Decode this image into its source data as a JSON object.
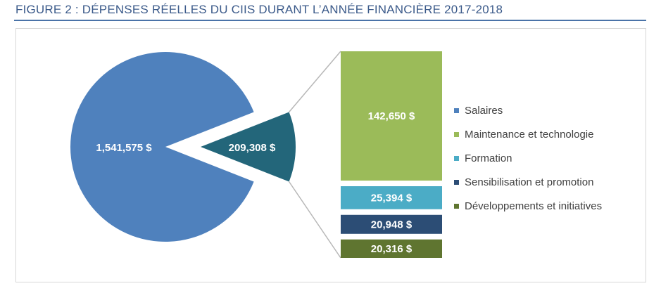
{
  "figure": {
    "title": "FIGURE 2 : DÉPENSES RÉELLES DU CIIS DURANT L’ANNÉE FINANCIÈRE 2017-2018"
  },
  "chart_data": {
    "type": "pie",
    "subtype": "bar-of-pie",
    "title": "FIGURE 2 : DÉPENSES RÉELLES DU CIIS DURANT L’ANNÉE FINANCIÈRE 2017-2018",
    "slices": [
      {
        "label": "1,541,575 $",
        "value": 1541575,
        "color": "#4f81bd"
      },
      {
        "label": "209,308 $",
        "value": 209308,
        "color": "#23667a"
      }
    ],
    "breakdown": [
      {
        "name": "Maintenance et technologie",
        "value": 142650,
        "label": "142,650 $",
        "color": "#9bbb59"
      },
      {
        "name": "Formation",
        "value": 25394,
        "label": "25,394 $",
        "color": "#4bacc6"
      },
      {
        "name": "Sensibilisation et promotion",
        "value": 20948,
        "label": "20,948 $",
        "color": "#2c4d75"
      },
      {
        "name": "Développements et initiatives",
        "value": 20316,
        "label": "20,316 $",
        "color": "#5f7530"
      }
    ],
    "legend": {
      "position": "right",
      "items": [
        {
          "name": "Salaires",
          "color": "#4f81bd"
        },
        {
          "name": "Maintenance et technologie",
          "color": "#9bbb59"
        },
        {
          "name": "Formation",
          "color": "#4bacc6"
        },
        {
          "name": "Sensibilisation et promotion",
          "color": "#2c4d75"
        },
        {
          "name": "Développements et initiatives",
          "color": "#5f7530"
        }
      ]
    }
  }
}
